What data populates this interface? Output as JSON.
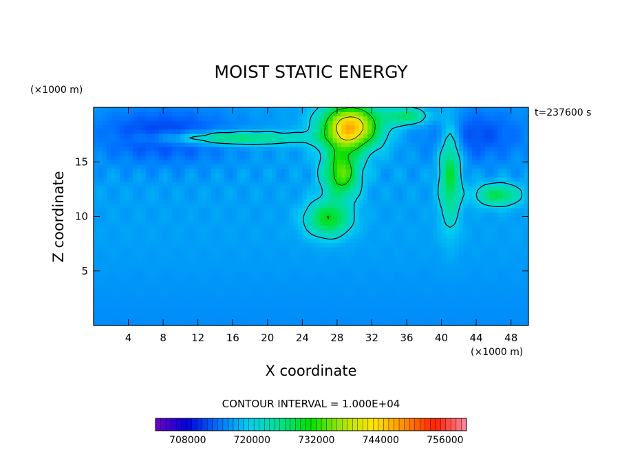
{
  "chart_data": {
    "type": "heatmap",
    "title": "MOIST STATIC ENERGY",
    "xlabel": "X coordinate",
    "ylabel": "Z coordinate",
    "x_unit": "(×1000 m)",
    "y_unit": "(×1000 m)",
    "time_label": "t=237600 s",
    "contour_interval_label": "CONTOUR INTERVAL = 1.000E+04",
    "xlim": [
      0,
      50
    ],
    "ylim": [
      0,
      20
    ],
    "x_ticks": [
      4,
      8,
      12,
      16,
      20,
      24,
      28,
      32,
      36,
      40,
      44,
      48
    ],
    "y_ticks": [
      5,
      10,
      15
    ],
    "x_tick_labels": [
      "4",
      "8",
      "12",
      "16",
      "20",
      "24",
      "28",
      "32",
      "36",
      "40",
      "44",
      "48"
    ],
    "y_tick_labels": [
      "5",
      "10",
      "15"
    ],
    "colorbar": {
      "min": 702000,
      "max": 760000,
      "labels": [
        "708000",
        "720000",
        "732000",
        "744000",
        "756000"
      ],
      "label_values": [
        708000,
        720000,
        732000,
        744000,
        756000
      ],
      "colors": [
        "#6f00c8",
        "#0000dc",
        "#0070ff",
        "#00d0f0",
        "#00e08c",
        "#00e000",
        "#a8e600",
        "#ffe600",
        "#ff8c00",
        "#ff2000",
        "#ff8aa0"
      ]
    },
    "background_value": 716500,
    "features": [
      {
        "kind": "core",
        "x": 29.5,
        "z": 18.2,
        "sx": 3.2,
        "sz": 2.0,
        "value": 746000
      },
      {
        "kind": "core",
        "x": 28.5,
        "z": 14.0,
        "sx": 2.0,
        "sz": 2.2,
        "value": 734000
      },
      {
        "kind": "core",
        "x": 27.0,
        "z": 9.8,
        "sx": 2.5,
        "sz": 1.6,
        "value": 730000
      },
      {
        "kind": "arc",
        "x": 16.0,
        "z": 17.2,
        "sx": 8.0,
        "sz": 0.6,
        "value": 728000
      },
      {
        "kind": "arc",
        "x": 41.0,
        "z": 14.0,
        "sx": 1.2,
        "sz": 4.5,
        "value": 729000
      },
      {
        "kind": "arc",
        "x": 46.5,
        "z": 12.0,
        "sx": 2.5,
        "sz": 1.0,
        "value": 728000
      },
      {
        "kind": "blob",
        "x": 36.0,
        "z": 19.2,
        "sx": 2.5,
        "sz": 0.8,
        "value": 727000
      },
      {
        "kind": "low",
        "x": 8.0,
        "z": 17.5,
        "sx": 8.0,
        "sz": 2.5,
        "value": 711000
      },
      {
        "kind": "low",
        "x": 44.0,
        "z": 17.5,
        "sx": 6.0,
        "sz": 2.5,
        "value": 712000
      }
    ]
  }
}
